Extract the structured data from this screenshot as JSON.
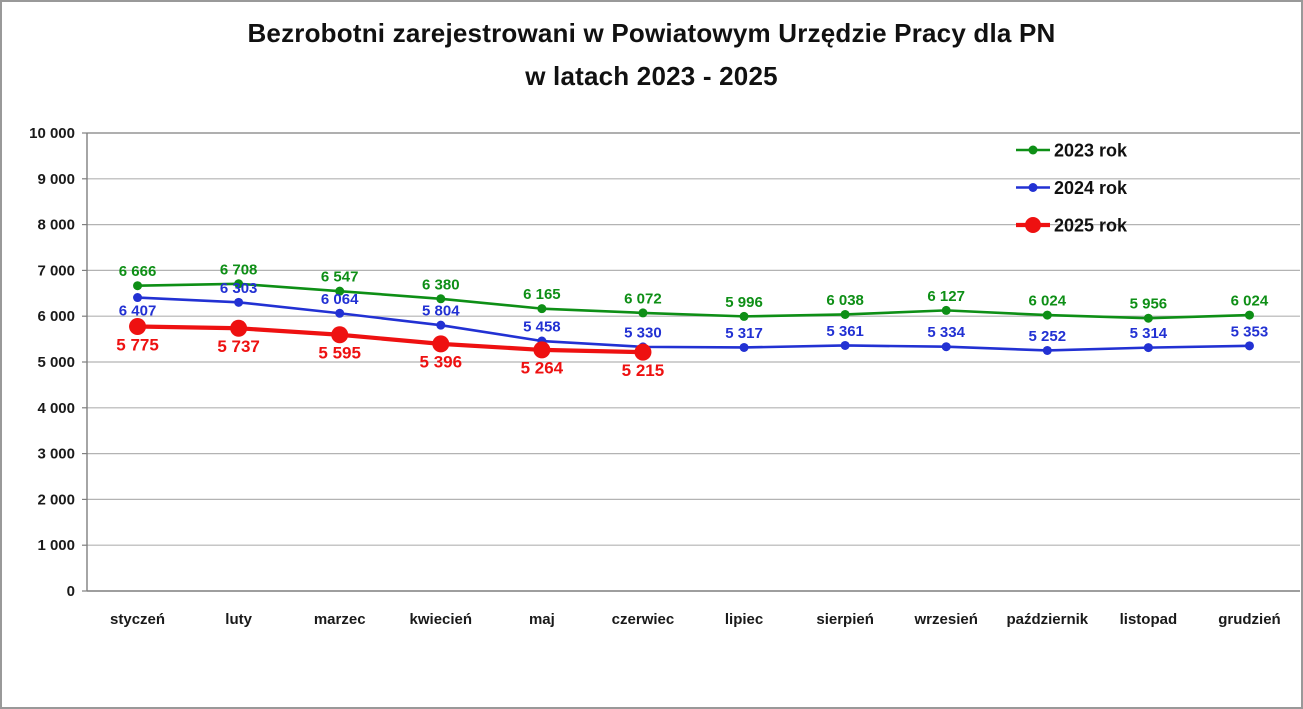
{
  "title": {
    "line1": "Bezrobotni zarejestrowani w Powiatowym Urzędzie Pracy dla PN",
    "line2": "w latach 2023 - 2025"
  },
  "chart_data": {
    "type": "line",
    "title": "Bezrobotni zarejestrowani w Powiatowym Urzędzie Pracy dla PN w latach 2023 - 2025",
    "categories": [
      "styczeń",
      "luty",
      "marzec",
      "kwiecień",
      "maj",
      "czerwiec",
      "lipiec",
      "sierpień",
      "wrzesień",
      "październik",
      "listopad",
      "grudzień"
    ],
    "series": [
      {
        "name": "2023 rok",
        "color": "#0e8f16",
        "values": [
          6666,
          6708,
          6547,
          6380,
          6165,
          6072,
          5996,
          6038,
          6127,
          6024,
          5956,
          6024
        ],
        "label_position": "above",
        "marker_radius": 4.5,
        "line_width": 2.6,
        "label_font_size": 15
      },
      {
        "name": "2024 rok",
        "color": "#2231d3",
        "values": [
          6407,
          6303,
          6064,
          5804,
          5458,
          5330,
          5317,
          5361,
          5334,
          5252,
          5314,
          5353
        ],
        "label_position": "above",
        "label_position_overrides": {
          "0": "below"
        },
        "marker_radius": 4.5,
        "line_width": 2.6,
        "label_font_size": 15
      },
      {
        "name": "2025 rok",
        "color": "#ee1111",
        "values": [
          5775,
          5737,
          5595,
          5396,
          5264,
          5215,
          null,
          null,
          null,
          null,
          null,
          null
        ],
        "label_position": "below",
        "marker_radius": 8.5,
        "line_width": 4.2,
        "label_font_size": 17
      }
    ],
    "ylim": [
      0,
      10000
    ],
    "ytick_step": 1000,
    "ytick_labels": [
      "0",
      "1 000",
      "2 000",
      "3 000",
      "4 000",
      "5 000",
      "6 000",
      "7 000",
      "8 000",
      "9 000",
      "10 000"
    ],
    "grid": true,
    "legend_position": "top-right",
    "number_format": "space-thousands",
    "colors": {
      "grid": "#b3b3b3",
      "axis": "#7f7f7f",
      "tick_text": "#1a1a1a",
      "title_text": "#111111"
    }
  }
}
